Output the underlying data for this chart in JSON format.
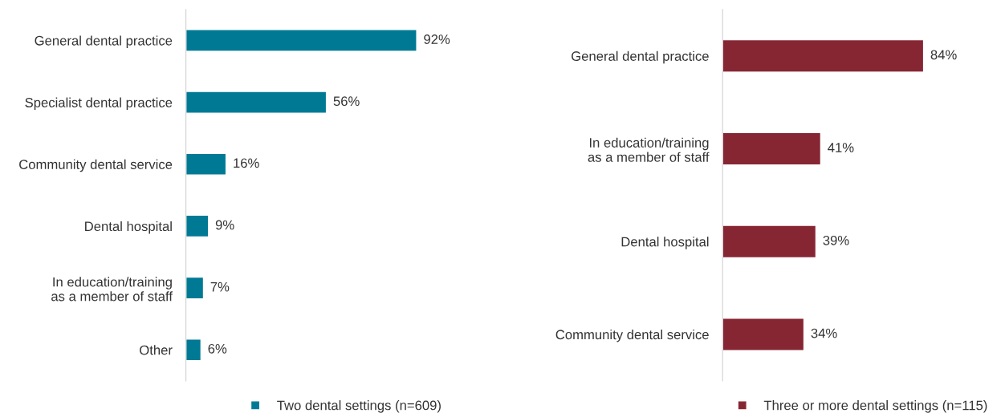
{
  "chart_data": [
    {
      "type": "bar",
      "orientation": "horizontal",
      "categories": [
        "General dental practice",
        "Specialist dental practice",
        "Community dental service",
        "Dental hospital",
        "In education/training\nas a member of staff",
        "Other"
      ],
      "series": [
        {
          "name": "Two dental settings (n=609)",
          "color": "#007a94",
          "values": [
            92,
            56,
            16,
            9,
            7,
            6
          ],
          "value_labels": [
            "92%",
            "56%",
            "16%",
            "9%",
            "7%",
            "6%"
          ]
        }
      ],
      "tick_labels": "y",
      "legend": "bottom"
    },
    {
      "type": "bar",
      "orientation": "horizontal",
      "categories": [
        "General dental practice",
        "In education/training\nas a member of staff",
        "Dental hospital",
        "Community dental service"
      ],
      "series": [
        {
          "name": "Three or more dental settings (n=115)",
          "color": "#862633",
          "values": [
            84,
            41,
            39,
            34
          ],
          "value_labels": [
            "84%",
            "41%",
            "39%",
            "34%"
          ]
        }
      ],
      "tick_labels": "y",
      "legend": "bottom"
    }
  ]
}
